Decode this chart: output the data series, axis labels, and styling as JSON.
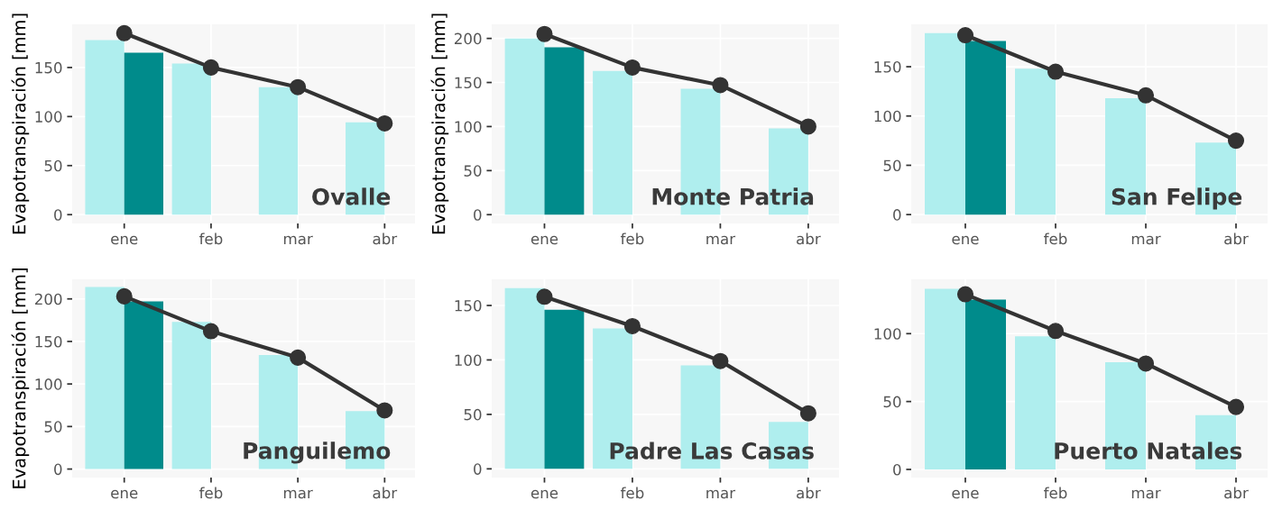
{
  "chart_data": [
    {
      "type": "bar",
      "categories": [
        "ene",
        "feb",
        "mar",
        "abr"
      ],
      "ylabel": "Evapotranspiración [mm]",
      "ylim": [
        -9,
        194
      ],
      "yticks": [
        0,
        50,
        100,
        150
      ],
      "grid": true,
      "marker": "circle",
      "annotations": [
        "Ovalle"
      ],
      "series": [
        {
          "color": "#afeeee",
          "values": [
            178,
            154,
            130,
            94
          ]
        },
        {
          "color": "#008b8b",
          "values": [
            165,
            null,
            null,
            null
          ]
        },
        {
          "type": "line",
          "color": "#333333",
          "values": [
            185,
            150,
            130,
            93
          ]
        }
      ]
    },
    {
      "type": "bar",
      "categories": [
        "ene",
        "feb",
        "mar",
        "abr"
      ],
      "ylabel": "Evapotranspiración [mm]",
      "ylim": [
        -10,
        216
      ],
      "yticks": [
        0,
        50,
        100,
        150,
        200
      ],
      "grid": true,
      "marker": "circle",
      "annotations": [
        "Monte Patria"
      ],
      "series": [
        {
          "color": "#afeeee",
          "values": [
            200,
            163,
            143,
            98
          ]
        },
        {
          "color": "#008b8b",
          "values": [
            190,
            null,
            null,
            null
          ]
        },
        {
          "type": "line",
          "color": "#333333",
          "values": [
            205,
            167,
            147,
            100
          ]
        }
      ]
    },
    {
      "type": "bar",
      "categories": [
        "ene",
        "feb",
        "mar",
        "abr"
      ],
      "ylim": [
        -9,
        193
      ],
      "yticks": [
        0,
        50,
        100,
        150
      ],
      "grid": true,
      "marker": "circle",
      "annotations": [
        "San Felipe"
      ],
      "series": [
        {
          "color": "#afeeee",
          "values": [
            184,
            148,
            118,
            73
          ]
        },
        {
          "color": "#008b8b",
          "values": [
            176,
            null,
            null,
            null
          ]
        },
        {
          "type": "line",
          "color": "#333333",
          "values": [
            182,
            145,
            121,
            75
          ]
        }
      ]
    },
    {
      "type": "bar",
      "categories": [
        "ene",
        "feb",
        "mar",
        "abr"
      ],
      "ylabel": "Evapotranspiración [mm]",
      "ylim": [
        -10,
        223
      ],
      "yticks": [
        0,
        50,
        100,
        150,
        200
      ],
      "grid": true,
      "marker": "circle",
      "annotations": [
        "Panguilemo"
      ],
      "series": [
        {
          "color": "#afeeee",
          "values": [
            214,
            173,
            134,
            68
          ]
        },
        {
          "color": "#008b8b",
          "values": [
            197,
            null,
            null,
            null
          ]
        },
        {
          "type": "line",
          "color": "#333333",
          "values": [
            203,
            162,
            131,
            69
          ]
        }
      ]
    },
    {
      "type": "bar",
      "categories": [
        "ene",
        "feb",
        "mar",
        "abr"
      ],
      "ylim": [
        -8,
        174
      ],
      "yticks": [
        0,
        50,
        100,
        150
      ],
      "grid": true,
      "marker": "circle",
      "annotations": [
        "Padre Las Casas"
      ],
      "series": [
        {
          "color": "#afeeee",
          "values": [
            166,
            129,
            95,
            43
          ]
        },
        {
          "color": "#008b8b",
          "values": [
            146,
            null,
            null,
            null
          ]
        },
        {
          "type": "line",
          "color": "#333333",
          "values": [
            158,
            131,
            99,
            51
          ]
        }
      ]
    },
    {
      "type": "bar",
      "categories": [
        "ene",
        "feb",
        "mar",
        "abr"
      ],
      "ylim": [
        -6,
        140
      ],
      "yticks": [
        0,
        50,
        100
      ],
      "grid": true,
      "marker": "circle",
      "annotations": [
        "Puerto Natales"
      ],
      "series": [
        {
          "color": "#afeeee",
          "values": [
            133,
            98,
            79,
            40
          ]
        },
        {
          "color": "#008b8b",
          "values": [
            125,
            null,
            null,
            null
          ]
        },
        {
          "type": "line",
          "color": "#333333",
          "values": [
            129,
            102,
            78,
            46
          ]
        }
      ]
    }
  ]
}
